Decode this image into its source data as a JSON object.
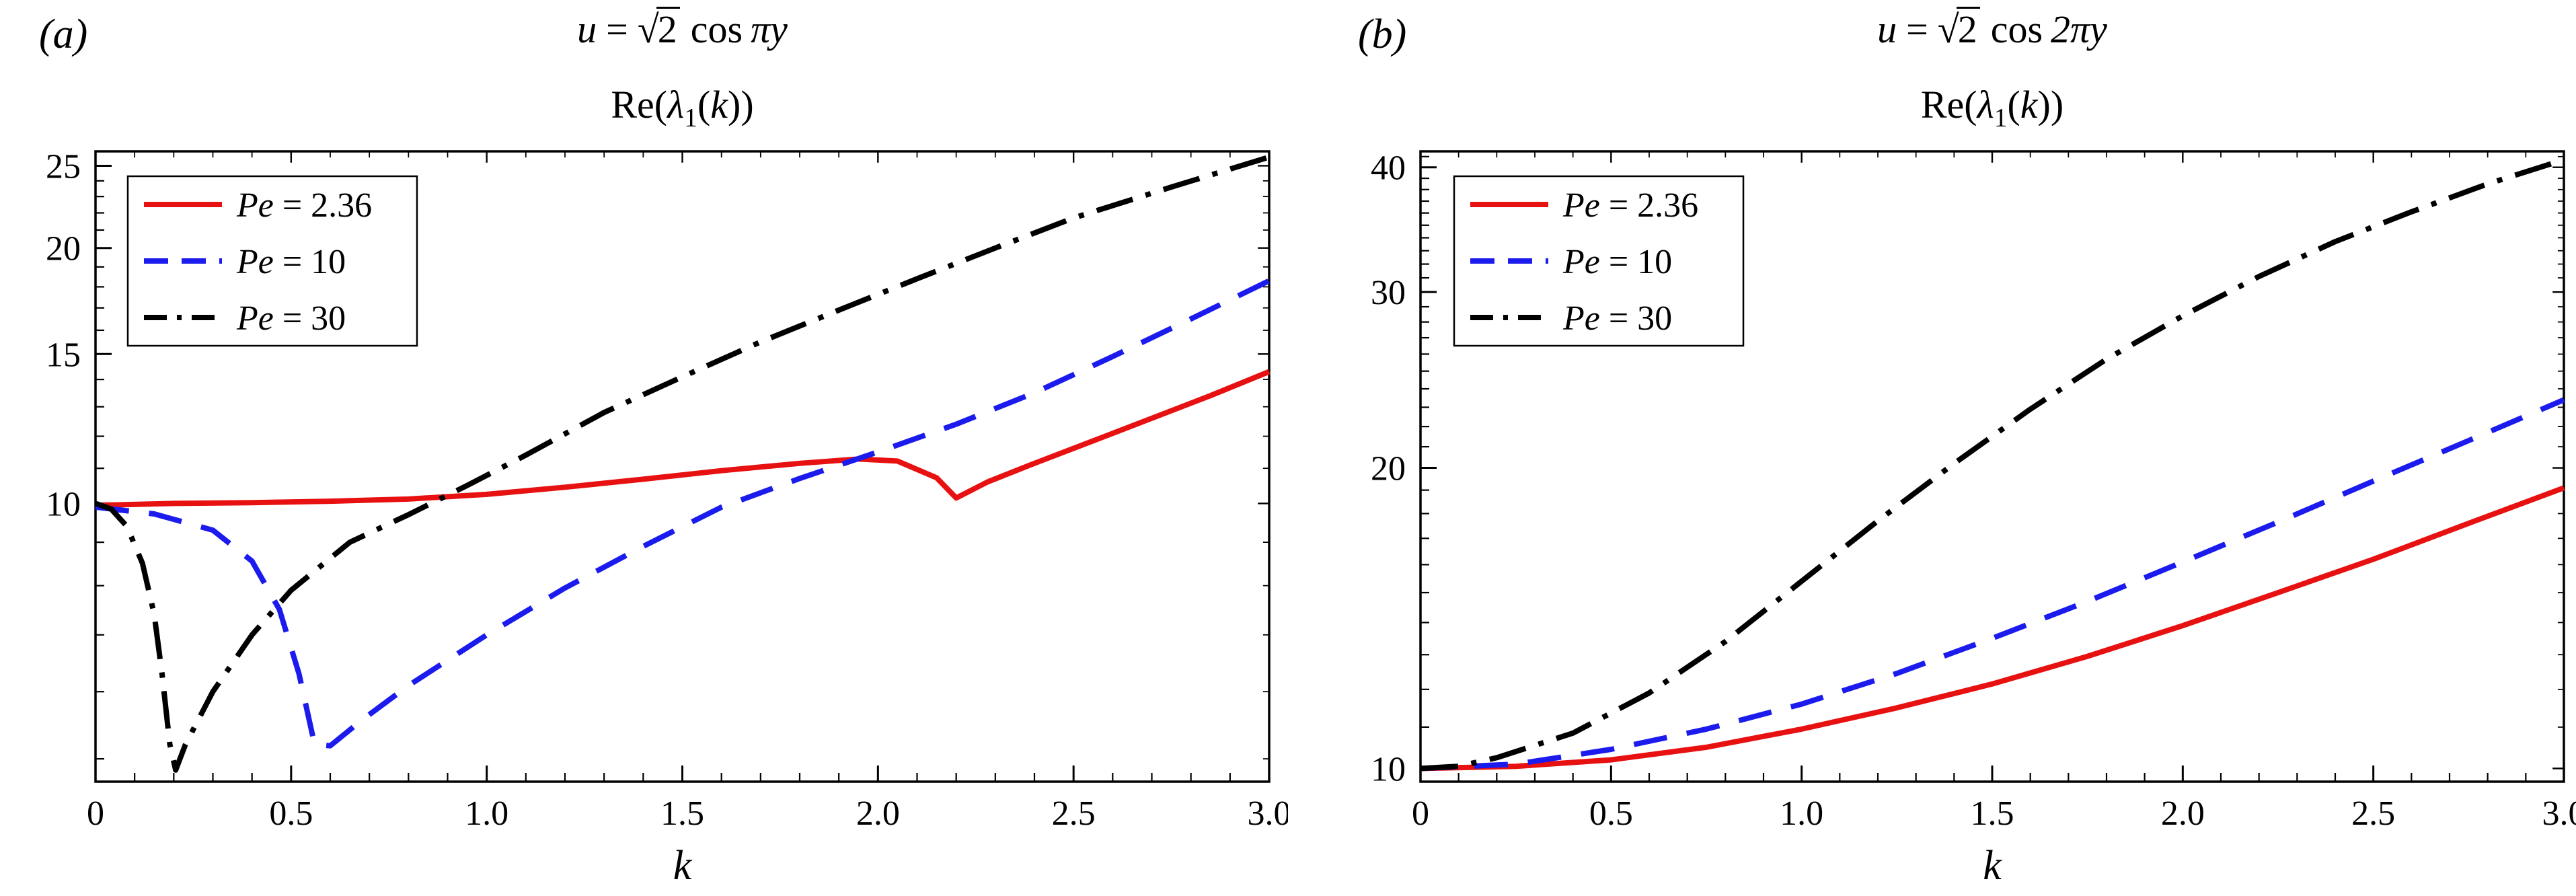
{
  "figure": {
    "background": "#ffffff",
    "panels": [
      {
        "label": "(a)",
        "title": {
          "lhs": "u",
          "eq": "=",
          "radical": "√",
          "radicand": "2",
          "func": "cos",
          "arg": "πy"
        },
        "subtitle": {
          "prefix": "Re(",
          "lambda": "λ",
          "subscript": "1",
          "open": "(",
          "var": "k",
          "close": "))"
        },
        "xlabel": "k"
      },
      {
        "label": "(b)",
        "title": {
          "lhs": "u",
          "eq": "=",
          "radical": "√",
          "radicand": "2",
          "func": "cos",
          "arg": "2πy"
        },
        "subtitle": {
          "prefix": "Re(",
          "lambda": "λ",
          "subscript": "1",
          "open": "(",
          "var": "k",
          "close": "))"
        },
        "xlabel": "k"
      }
    ]
  },
  "chart_data": [
    {
      "type": "line",
      "panel": "(a)",
      "title": "u = √2 cos πy",
      "subtitle": "Re(λ₁(k))",
      "xlabel": "k",
      "yscale": "log",
      "xlim": [
        0,
        3
      ],
      "ylim": [
        4.7,
        26.0
      ],
      "xticks": [
        "0",
        "0.5",
        "1.0",
        "1.5",
        "2.0",
        "2.5",
        "3.0"
      ],
      "xtick_values": [
        0,
        0.5,
        1.0,
        1.5,
        2.0,
        2.5,
        3.0
      ],
      "yticks": [
        "10",
        "15",
        "20",
        "25"
      ],
      "ytick_values": [
        10,
        15,
        20,
        25
      ],
      "legend_position": "top-left",
      "grid": false,
      "series": [
        {
          "id": "pe-2-36",
          "name": "Pe = 2.36",
          "style": "solid",
          "color": "#e81111",
          "points": [
            [
              0,
              9.95
            ],
            [
              0.2,
              10.0
            ],
            [
              0.4,
              10.02
            ],
            [
              0.6,
              10.06
            ],
            [
              0.8,
              10.12
            ],
            [
              1.0,
              10.25
            ],
            [
              1.2,
              10.45
            ],
            [
              1.4,
              10.68
            ],
            [
              1.6,
              10.93
            ],
            [
              1.8,
              11.15
            ],
            [
              1.95,
              11.28
            ],
            [
              2.05,
              11.22
            ],
            [
              2.15,
              10.72
            ],
            [
              2.2,
              10.15
            ],
            [
              2.28,
              10.6
            ],
            [
              2.4,
              11.15
            ],
            [
              2.55,
              11.85
            ],
            [
              2.7,
              12.6
            ],
            [
              2.85,
              13.4
            ],
            [
              3.0,
              14.3
            ]
          ]
        },
        {
          "id": "pe-10",
          "name": "Pe = 10",
          "style": "dashed",
          "color": "#1b1bee",
          "points": [
            [
              0,
              9.9
            ],
            [
              0.15,
              9.72
            ],
            [
              0.3,
              9.3
            ],
            [
              0.4,
              8.55
            ],
            [
              0.47,
              7.5
            ],
            [
              0.52,
              6.3
            ],
            [
              0.56,
              5.2
            ],
            [
              0.6,
              5.18
            ],
            [
              0.68,
              5.55
            ],
            [
              0.8,
              6.1
            ],
            [
              1.0,
              7.0
            ],
            [
              1.2,
              7.95
            ],
            [
              1.4,
              8.9
            ],
            [
              1.6,
              9.9
            ],
            [
              1.8,
              10.7
            ],
            [
              2.0,
              11.5
            ],
            [
              2.2,
              12.4
            ],
            [
              2.4,
              13.5
            ],
            [
              2.6,
              14.9
            ],
            [
              2.8,
              16.5
            ],
            [
              3.0,
              18.3
            ]
          ]
        },
        {
          "id": "pe-30",
          "name": "Pe = 30",
          "style": "dashdot",
          "color": "#000000",
          "points": [
            [
              0,
              10.0
            ],
            [
              0.04,
              9.85
            ],
            [
              0.08,
              9.4
            ],
            [
              0.12,
              8.5
            ],
            [
              0.15,
              7.4
            ],
            [
              0.17,
              6.3
            ],
            [
              0.19,
              5.2
            ],
            [
              0.205,
              4.85
            ],
            [
              0.23,
              5.2
            ],
            [
              0.3,
              6.0
            ],
            [
              0.4,
              7.0
            ],
            [
              0.5,
              7.9
            ],
            [
              0.65,
              9.0
            ],
            [
              0.8,
              9.7
            ],
            [
              0.95,
              10.5
            ],
            [
              1.1,
              11.4
            ],
            [
              1.3,
              12.8
            ],
            [
              1.5,
              14.1
            ],
            [
              1.7,
              15.5
            ],
            [
              1.9,
              16.9
            ],
            [
              2.1,
              18.4
            ],
            [
              2.3,
              20.0
            ],
            [
              2.5,
              21.7
            ],
            [
              2.75,
              23.6
            ],
            [
              3.0,
              25.6
            ]
          ]
        }
      ]
    },
    {
      "type": "line",
      "panel": "(b)",
      "title": "u = √2 cos 2πy",
      "subtitle": "Re(λ₁(k))",
      "xlabel": "k",
      "yscale": "log",
      "xlim": [
        0,
        3
      ],
      "ylim": [
        9.7,
        41.5
      ],
      "xticks": [
        "0",
        "0.5",
        "1.0",
        "1.5",
        "2.0",
        "2.5",
        "3.0"
      ],
      "xtick_values": [
        0,
        0.5,
        1.0,
        1.5,
        2.0,
        2.5,
        3.0
      ],
      "yticks": [
        "10",
        "20",
        "30",
        "40"
      ],
      "ytick_values": [
        10,
        20,
        30,
        40
      ],
      "legend_position": "top-left",
      "grid": false,
      "series": [
        {
          "id": "pe-2-36",
          "name": "Pe = 2.36",
          "style": "solid",
          "color": "#e81111",
          "points": [
            [
              0,
              10.0
            ],
            [
              0.25,
              10.05
            ],
            [
              0.5,
              10.2
            ],
            [
              0.75,
              10.5
            ],
            [
              1.0,
              10.95
            ],
            [
              1.25,
              11.5
            ],
            [
              1.5,
              12.15
            ],
            [
              1.75,
              12.95
            ],
            [
              2.0,
              13.9
            ],
            [
              2.25,
              15.0
            ],
            [
              2.5,
              16.2
            ],
            [
              2.75,
              17.6
            ],
            [
              3.0,
              19.1
            ]
          ]
        },
        {
          "id": "pe-10",
          "name": "Pe = 10",
          "style": "dashed",
          "color": "#1b1bee",
          "points": [
            [
              0,
              10.0
            ],
            [
              0.25,
              10.1
            ],
            [
              0.5,
              10.45
            ],
            [
              0.75,
              10.95
            ],
            [
              1.0,
              11.6
            ],
            [
              1.25,
              12.45
            ],
            [
              1.5,
              13.5
            ],
            [
              1.75,
              14.7
            ],
            [
              2.0,
              16.1
            ],
            [
              2.25,
              17.65
            ],
            [
              2.5,
              19.4
            ],
            [
              2.75,
              21.3
            ],
            [
              3.0,
              23.4
            ]
          ]
        },
        {
          "id": "pe-30",
          "name": "Pe = 30",
          "style": "dashdot",
          "color": "#000000",
          "points": [
            [
              0,
              10.0
            ],
            [
              0.1,
              10.05
            ],
            [
              0.2,
              10.25
            ],
            [
              0.4,
              10.85
            ],
            [
              0.6,
              11.9
            ],
            [
              0.8,
              13.4
            ],
            [
              1.0,
              15.4
            ],
            [
              1.2,
              17.7
            ],
            [
              1.4,
              20.2
            ],
            [
              1.6,
              22.9
            ],
            [
              1.8,
              25.7
            ],
            [
              2.0,
              28.4
            ],
            [
              2.2,
              31.1
            ],
            [
              2.4,
              33.7
            ],
            [
              2.6,
              36.1
            ],
            [
              2.8,
              38.5
            ],
            [
              3.0,
              40.7
            ]
          ]
        }
      ]
    }
  ]
}
